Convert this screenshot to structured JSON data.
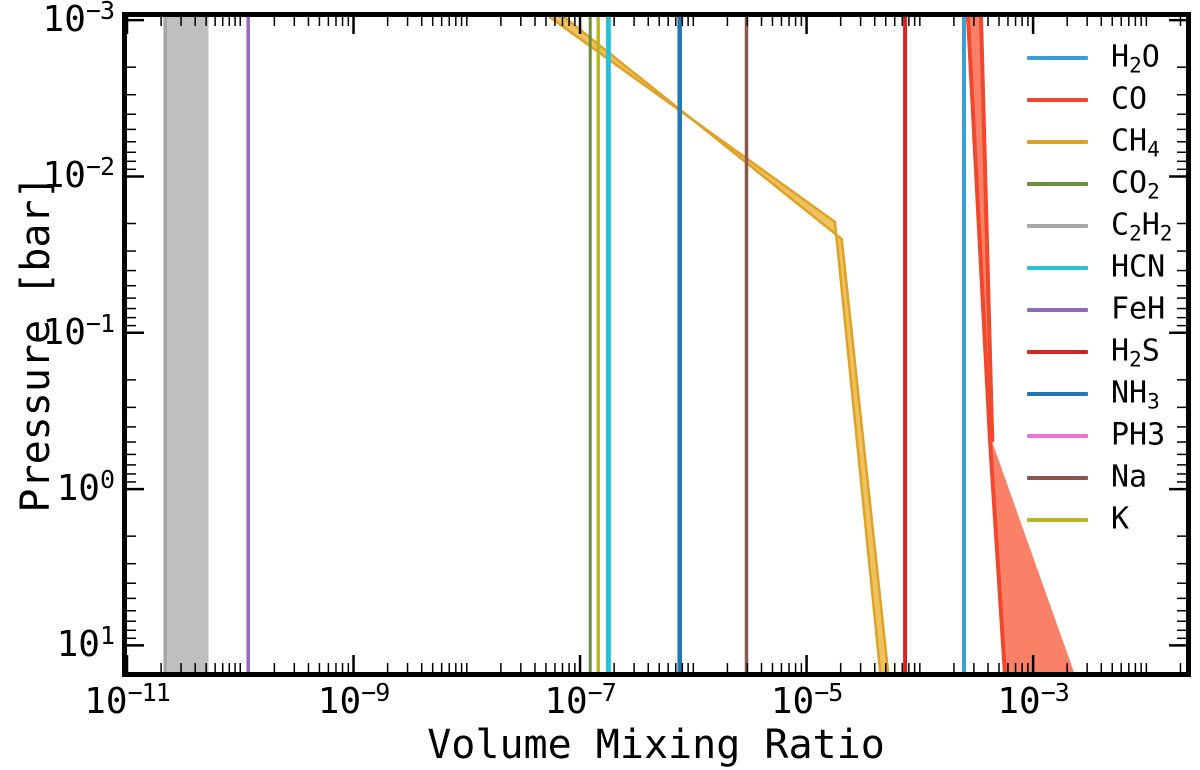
{
  "chart_data": {
    "type": "line",
    "title": "",
    "xlabel": "Volume Mixing Ratio",
    "ylabel": "Pressure [bar]",
    "x_scale": "log",
    "y_scale": "log",
    "y_axis_inverted": true,
    "grid": false,
    "frame_color": "#000000",
    "background_color": "#ffffff",
    "x_range_exp": [
      -11,
      -1.65
    ],
    "y_range_exp": [
      -3.02,
      1.17
    ],
    "x_major_tick_exps": [
      -11,
      -9,
      -7,
      -5,
      -3
    ],
    "x_tick_labels": [
      "10^-11",
      "10^-9",
      "10^-7",
      "10^-5",
      "10^-3"
    ],
    "y_major_tick_exps": [
      -3,
      -2,
      -1,
      0,
      1
    ],
    "y_tick_labels": [
      "10^-3",
      "10^-2",
      "10^-1",
      "10^0",
      "10^1"
    ],
    "legend_position": "upper right",
    "legend_frame": false,
    "series": [
      {
        "name": "H2O",
        "formula": "H_2O",
        "color": "#3a9fd9",
        "width": 4,
        "points": [
          [
            -3.61,
            -3.02
          ],
          [
            -3.61,
            1.17
          ]
        ]
      },
      {
        "name": "CO",
        "formula": "CO",
        "color": "#f1482d",
        "width": 4,
        "points": [
          [
            -3.575,
            -3.02
          ],
          [
            -3.38,
            -0.3
          ],
          [
            -3.25,
            1.17
          ]
        ],
        "points2": [
          [
            -3.46,
            -3.02
          ],
          [
            -3.36,
            -0.3
          ]
        ],
        "band": {
          "color": "#fa8168",
          "polygon": [
            [
              -3.575,
              -3.02
            ],
            [
              -3.38,
              -0.3
            ],
            [
              -3.25,
              1.17
            ],
            [
              -2.64,
              1.17
            ],
            [
              -3.36,
              -0.3
            ],
            [
              -3.46,
              -3.02
            ]
          ]
        }
      },
      {
        "name": "CH4",
        "formula": "CH_4",
        "color": "#dfa226",
        "width": 2.5,
        "points": [
          [
            -7.27,
            -3.02
          ],
          [
            -4.75,
            -1.71
          ],
          [
            -4.35,
            1.17
          ]
        ],
        "points2": [
          [
            -7.14,
            -3.02
          ],
          [
            -4.69,
            -1.6
          ],
          [
            -4.28,
            1.17
          ]
        ],
        "band": {
          "color": "#eec25f",
          "polygon": [
            [
              -7.27,
              -3.02
            ],
            [
              -4.75,
              -1.71
            ],
            [
              -4.35,
              1.17
            ],
            [
              -4.28,
              1.17
            ],
            [
              -4.69,
              -1.6
            ],
            [
              -7.14,
              -3.02
            ]
          ]
        }
      },
      {
        "name": "CO2",
        "formula": "CO_2",
        "color": "#6d8e3f",
        "width": 3,
        "points": [
          [
            -6.91,
            -3.02
          ],
          [
            -6.91,
            1.17
          ]
        ]
      },
      {
        "name": "C2H2",
        "formula": "C_2H_2",
        "color": "#a7a7a7",
        "width": 3,
        "points": [
          [
            -10.66,
            -3.02
          ],
          [
            -10.66,
            1.17
          ]
        ],
        "band": {
          "color": "#bfbfbf",
          "polygon": [
            [
              -10.68,
              -3.02
            ],
            [
              -10.68,
              1.17
            ],
            [
              -10.28,
              1.17
            ],
            [
              -10.28,
              -3.02
            ]
          ]
        }
      },
      {
        "name": "HCN",
        "formula": "HCN",
        "color": "#27c2d7",
        "width": 5,
        "points": [
          [
            -6.75,
            -3.02
          ],
          [
            -6.75,
            1.17
          ]
        ]
      },
      {
        "name": "FeH",
        "formula": "FeH",
        "color": "#9468bd",
        "width": 3.5,
        "points": [
          [
            -9.93,
            -3.02
          ],
          [
            -9.93,
            1.17
          ]
        ]
      },
      {
        "name": "H2S",
        "formula": "H_2S",
        "color": "#d32526",
        "width": 4,
        "points": [
          [
            -4.13,
            -3.02
          ],
          [
            -4.13,
            1.17
          ]
        ]
      },
      {
        "name": "NH3",
        "formula": "NH_3",
        "color": "#1f77b4",
        "width": 4.5,
        "points": [
          [
            -6.12,
            -3.02
          ],
          [
            -6.12,
            1.17
          ]
        ]
      },
      {
        "name": "PH3",
        "formula": "PH3",
        "color": "#ee72ce",
        "width": 4,
        "points": []
      },
      {
        "name": "Na",
        "formula": "Na",
        "color": "#8a574a",
        "width": 3.5,
        "points": [
          [
            -5.53,
            -3.02
          ],
          [
            -5.53,
            1.17
          ]
        ]
      },
      {
        "name": "K",
        "formula": "K",
        "color": "#b8b823",
        "width": 3.5,
        "points": [
          [
            -6.84,
            -3.02
          ],
          [
            -6.84,
            1.17
          ]
        ]
      }
    ]
  }
}
